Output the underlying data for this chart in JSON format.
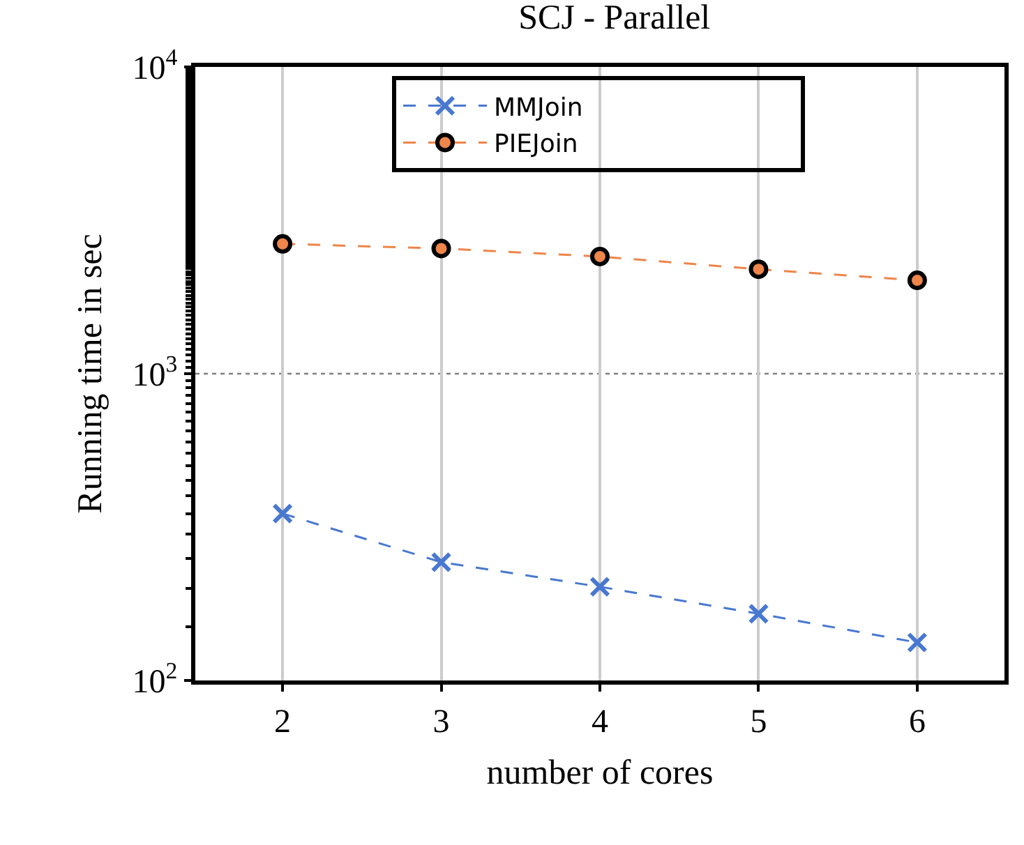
{
  "chart_data": {
    "type": "line",
    "title": "SCJ - Parallel",
    "xlabel": "number of cores",
    "ylabel": "Running time in sec",
    "x": [
      2,
      3,
      4,
      5,
      6
    ],
    "series": [
      {
        "name": "MMJoin",
        "color": "#4878d0",
        "marker": "cross",
        "values": [
          350,
          243,
          202,
          165,
          133
        ]
      },
      {
        "name": "PIEJoin",
        "color": "#ee854a",
        "marker": "circle",
        "values": [
          2650,
          2560,
          2410,
          2190,
          2015
        ]
      }
    ],
    "log": "y",
    "xlim": [
      1.45,
      6.55
    ],
    "xticks": [
      2,
      3,
      4,
      5,
      6
    ],
    "ylim": [
      100,
      10000
    ],
    "yticks": [
      {
        "value": 100,
        "label": "10$^{2}$"
      },
      {
        "value": 1000,
        "label": "10$^{3}$"
      },
      {
        "value": 10000,
        "label": "10$^{4}$"
      }
    ],
    "ref_lines": [
      {
        "axis": "y",
        "value": 1000,
        "label": null,
        "color": "#808080",
        "line_style": "dotted"
      }
    ],
    "grid": "x",
    "legend": "top",
    "line_style": "dashed"
  }
}
